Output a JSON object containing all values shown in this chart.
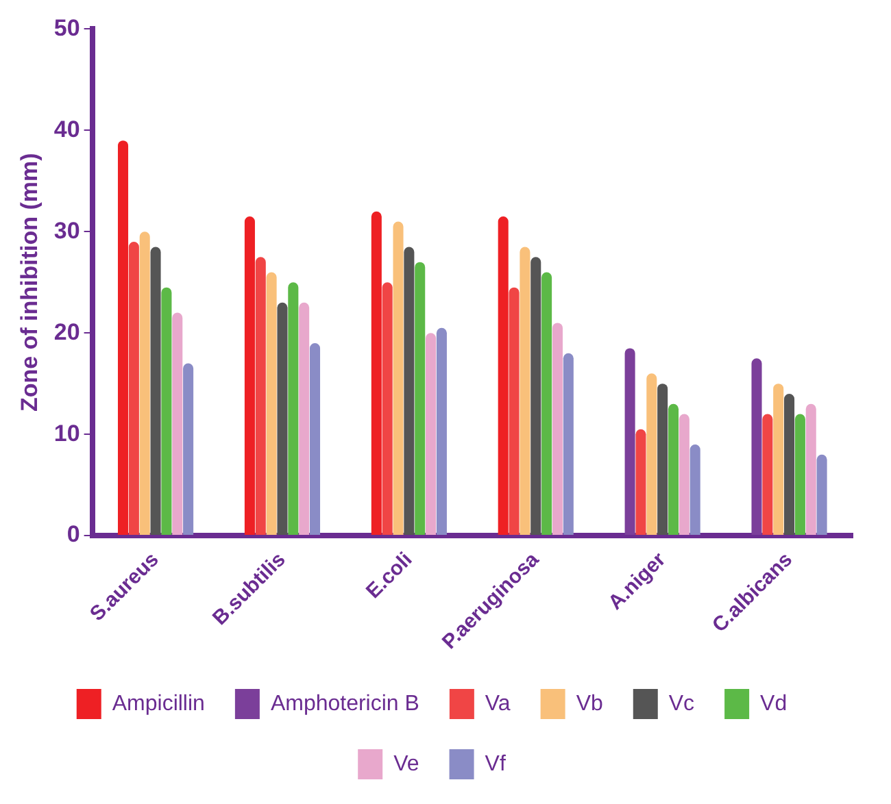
{
  "chart_data": {
    "type": "bar",
    "ylabel": "Zone of inhibition (mm)",
    "categories": [
      "S.aureus",
      "B.subtilis",
      "E.coli",
      "P.aeruginosa",
      "A.niger",
      "C.albicans"
    ],
    "series": [
      {
        "name": "Ampicillin",
        "color": "#ee2024",
        "values": [
          39,
          31.5,
          32,
          31.5,
          null,
          null
        ]
      },
      {
        "name": "Amphotericin B",
        "color": "#7b3f9a",
        "values": [
          null,
          null,
          null,
          null,
          18.5,
          17.5
        ]
      },
      {
        "name": "Va",
        "color": "#f04545",
        "values": [
          29,
          27.5,
          25,
          24.5,
          10.5,
          12
        ]
      },
      {
        "name": "Vb",
        "color": "#f9c07a",
        "values": [
          30,
          26,
          31,
          28.5,
          16,
          15
        ]
      },
      {
        "name": "Vc",
        "color": "#555555",
        "values": [
          28.5,
          23,
          28.5,
          27.5,
          15,
          14
        ]
      },
      {
        "name": "Vd",
        "color": "#5cb947",
        "values": [
          24.5,
          25,
          27,
          26,
          13,
          12
        ]
      },
      {
        "name": "Ve",
        "color": "#e8a8cc",
        "values": [
          22,
          23,
          20,
          21,
          12,
          13
        ]
      },
      {
        "name": "Vf",
        "color": "#8a8cc6",
        "values": [
          17,
          19,
          20.5,
          18,
          9,
          8
        ]
      }
    ],
    "ylim": [
      0,
      50
    ],
    "yticks": [
      0,
      10,
      20,
      30,
      40,
      50
    ],
    "grid": false,
    "legend": "bottom"
  }
}
